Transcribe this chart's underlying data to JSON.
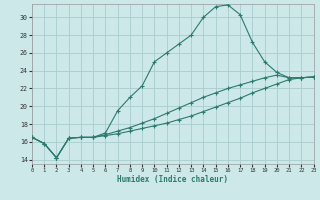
{
  "xlabel": "Humidex (Indice chaleur)",
  "background_color": "#cce8e8",
  "grid_color": "#aacccc",
  "line_color": "#2d7a6e",
  "xlim": [
    0,
    23
  ],
  "ylim": [
    13.5,
    31.5
  ],
  "xticks": [
    0,
    1,
    2,
    3,
    4,
    5,
    6,
    7,
    8,
    9,
    10,
    11,
    12,
    13,
    14,
    15,
    16,
    17,
    18,
    19,
    20,
    21,
    22,
    23
  ],
  "yticks": [
    14,
    16,
    18,
    20,
    22,
    24,
    26,
    28,
    30
  ],
  "line1_y": [
    16.5,
    15.8,
    14.2,
    16.4,
    16.5,
    16.5,
    17.0,
    19.5,
    21.0,
    22.3,
    25.0,
    26.0,
    27.0,
    28.0,
    30.0,
    31.2,
    31.4,
    30.3,
    27.2,
    25.0,
    23.8,
    23.2,
    23.2,
    23.3
  ],
  "line2_y": [
    16.5,
    15.8,
    14.2,
    16.4,
    16.5,
    16.5,
    16.8,
    17.2,
    17.6,
    18.1,
    18.6,
    19.2,
    19.8,
    20.4,
    21.0,
    21.5,
    22.0,
    22.4,
    22.8,
    23.2,
    23.5,
    23.2,
    23.2,
    23.3
  ],
  "line3_y": [
    16.5,
    15.8,
    14.2,
    16.4,
    16.5,
    16.5,
    16.7,
    16.9,
    17.2,
    17.5,
    17.8,
    18.1,
    18.5,
    18.9,
    19.4,
    19.9,
    20.4,
    20.9,
    21.5,
    22.0,
    22.5,
    23.0,
    23.2,
    23.3
  ]
}
